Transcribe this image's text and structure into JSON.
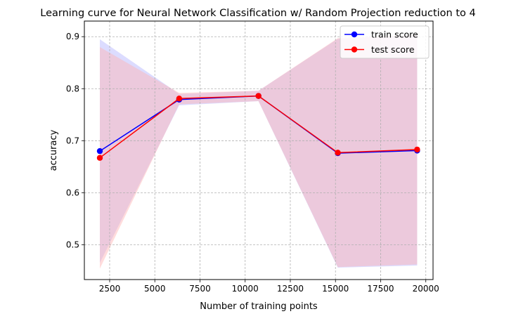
{
  "chart_data": {
    "type": "line",
    "title": "Learning curve for Neural Network Classification w/ Random Projection reduction to 4",
    "xlabel": "Number of training points",
    "ylabel": "accuracy",
    "xlim": [
      1100,
      20400
    ],
    "ylim": [
      0.433,
      0.93
    ],
    "xticks": [
      2500,
      5000,
      7500,
      10000,
      12500,
      15000,
      17500,
      20000
    ],
    "xtick_labels": [
      "2500",
      "5000",
      "7500",
      "10000",
      "12500",
      "15000",
      "17500",
      "20000"
    ],
    "yticks": [
      0.5,
      0.6,
      0.7,
      0.8,
      0.9
    ],
    "ytick_labels": [
      "0.5",
      "0.6",
      "0.7",
      "0.8",
      "0.9"
    ],
    "grid": true,
    "legend_position": "top-right",
    "x": [
      1956,
      6347,
      10738,
      15129,
      19520
    ],
    "series": [
      {
        "name": "train score",
        "color": "#0000ff",
        "band_color": "#b2b2ff",
        "values": [
          0.68,
          0.779,
          0.786,
          0.676,
          0.681
        ],
        "band_upper": [
          0.895,
          0.79,
          0.796,
          0.896,
          0.902
        ],
        "band_lower": [
          0.465,
          0.768,
          0.776,
          0.456,
          0.46
        ]
      },
      {
        "name": "test score",
        "color": "#ff0000",
        "band_color": "#ffb2b2",
        "values": [
          0.667,
          0.781,
          0.786,
          0.677,
          0.683
        ],
        "band_upper": [
          0.88,
          0.792,
          0.796,
          0.897,
          0.904
        ],
        "band_lower": [
          0.454,
          0.77,
          0.776,
          0.457,
          0.462
        ]
      }
    ]
  }
}
